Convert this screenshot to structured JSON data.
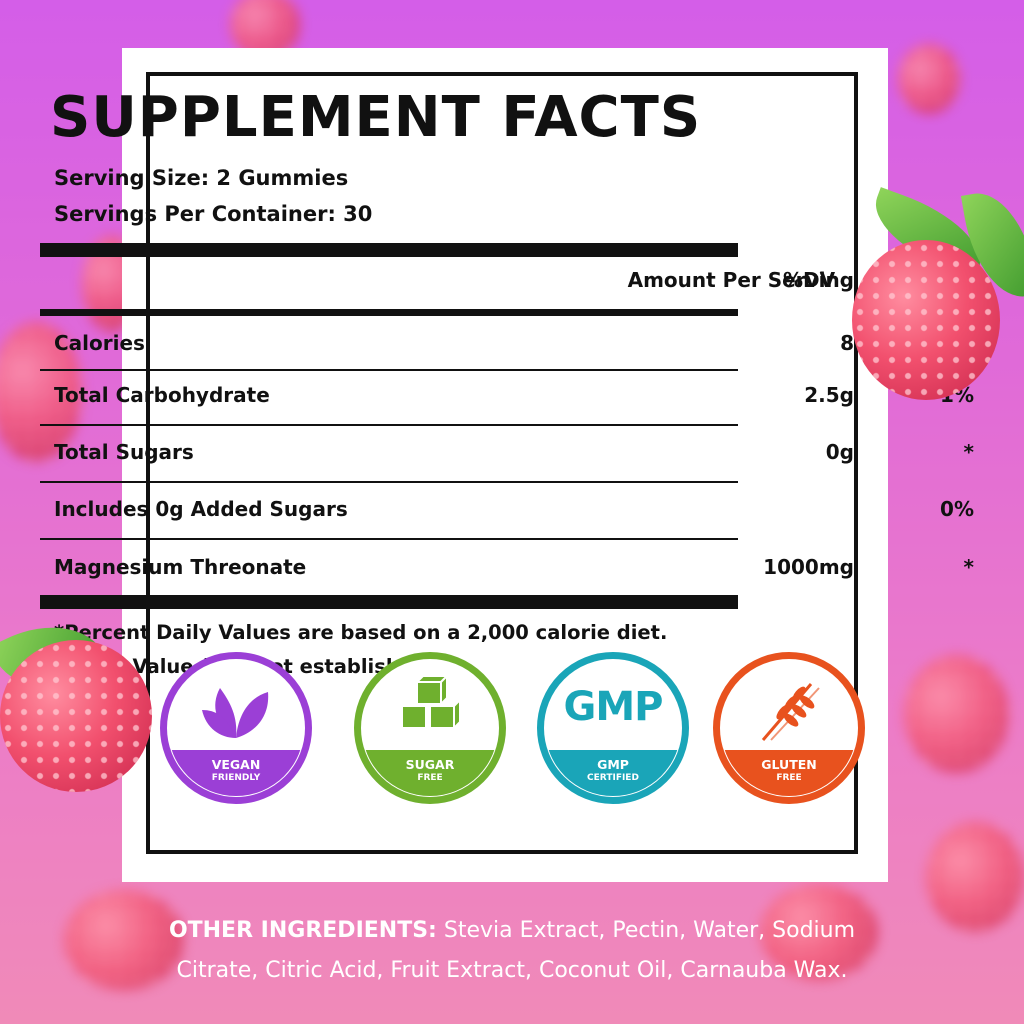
{
  "label": {
    "title": "SUPPLEMENT FACTS",
    "serving_size": "Serving Size: 2 Gummies",
    "servings_per_container": "Servings Per Container: 30",
    "header_amount": "Amount Per Serving",
    "header_dv": "%DV",
    "rows": [
      {
        "name": "Calories",
        "amount": "8",
        "dv": ""
      },
      {
        "name": "Total Carbohydrate",
        "amount": "2.5g",
        "dv": "1%"
      },
      {
        "name": "Total Sugars",
        "amount": "0g",
        "dv": "*"
      },
      {
        "name": "Includes 0g Added Sugars",
        "amount": "",
        "dv": "0%"
      },
      {
        "name": "Magnesium Threonate",
        "amount": "1000mg",
        "dv": "*"
      }
    ],
    "footnote_1": "*Percent Daily Values are based on a 2,000 calorie diet.",
    "footnote_2": "+Daily Value (DV) not established."
  },
  "badges": [
    {
      "icon": "leaf-icon",
      "line1": "VEGAN",
      "line2": "FRIENDLY",
      "color": "#9b3fd6"
    },
    {
      "icon": "cubes-icon",
      "line1": "SUGAR",
      "line2": "FREE",
      "color": "#6fb02e"
    },
    {
      "icon": "gmp-icon",
      "mark": "GMP",
      "line1": "GMP",
      "line2": "CERTIFIED",
      "color": "#1aa5b8"
    },
    {
      "icon": "wheat-icon",
      "line1": "GLUTEN",
      "line2": "FREE",
      "color": "#e8521e"
    }
  ],
  "other_ingredients": {
    "heading": "OTHER INGREDIENTS:",
    "line1_rest": " Stevia Extract, Pectin, Water, Sodium",
    "line2": "Citrate, Citric Acid, Fruit Extract, Coconut Oil, Carnauba Wax."
  }
}
